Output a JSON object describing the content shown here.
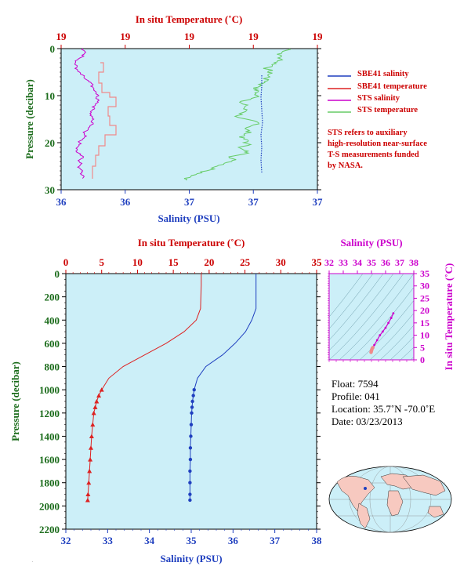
{
  "top_panel": {
    "temp_axis_title": "In situ Temperature (˚C)",
    "salinity_axis_title": "Salinity (PSU)",
    "pressure_axis_title": "Pressure (decibar)",
    "temp_ticks": [
      "19",
      "19",
      "19",
      "19",
      "19"
    ],
    "salinity_ticks": [
      "36",
      "36",
      "37",
      "37",
      "37"
    ],
    "pressure_ticks": [
      "0",
      "10",
      "20",
      "30"
    ],
    "legend": [
      {
        "label": "SBE41 salinity",
        "color": "#1f3fbf"
      },
      {
        "label": "SBE41 temperature",
        "color": "#dd2222"
      },
      {
        "label": "STS salinity",
        "color": "#cc00cc"
      },
      {
        "label": "STS temperature",
        "color": "#66cc66"
      }
    ],
    "note": [
      "STS refers to auxiliary",
      "high-resolution near-surface",
      "T-S measurements funded",
      "by NASA."
    ]
  },
  "main_panel": {
    "temp_axis_title": "In situ Temperature (˚C)",
    "salinity_axis_title": "Salinity (PSU)",
    "pressure_axis_title": "Pressure (decibar)",
    "temp_ticks": [
      "0",
      "5",
      "10",
      "15",
      "20",
      "25",
      "30",
      "35"
    ],
    "salinity_ticks": [
      "32",
      "33",
      "34",
      "35",
      "36",
      "37",
      "38"
    ],
    "pressure_ticks": [
      "0",
      "200",
      "400",
      "600",
      "800",
      "1000",
      "1200",
      "1400",
      "1600",
      "1800",
      "2000",
      "2200"
    ]
  },
  "ts_panel": {
    "salinity_axis_title": "Salinity (PSU)",
    "temp_axis_title": "In situ Temperature (˚C)",
    "salinity_ticks": [
      "32",
      "33",
      "34",
      "35",
      "36",
      "37",
      "38"
    ],
    "temp_ticks": [
      "0",
      "5",
      "10",
      "15",
      "20",
      "25",
      "30",
      "35"
    ]
  },
  "info": {
    "float": "Float: 7594",
    "profile": "Profile: 041",
    "location": "Location: 35.7˚N -70.0˚E",
    "date": "Date: 03/23/2013"
  },
  "chart_data": [
    {
      "type": "line",
      "panel": "main",
      "x_temperature_range": [
        0,
        35
      ],
      "x_salinity_range": [
        32,
        38
      ],
      "y_pressure_range": [
        0,
        2200
      ],
      "y_inverted": true,
      "series": [
        {
          "variable": "temperature",
          "color": "#dd2222",
          "pressure": [
            0,
            100,
            200,
            300,
            400,
            500,
            600,
            700,
            800,
            900,
            1000,
            1050,
            1100,
            1150,
            1200,
            1300,
            1400,
            1500,
            1600,
            1700,
            1800,
            1900,
            1950
          ],
          "values": [
            18.9,
            18.9,
            18.85,
            18.8,
            18.2,
            16.5,
            14.0,
            11.0,
            8.0,
            6.0,
            5.0,
            4.6,
            4.3,
            4.1,
            3.9,
            3.75,
            3.6,
            3.5,
            3.4,
            3.3,
            3.2,
            3.1,
            3.05
          ]
        },
        {
          "variable": "salinity",
          "color": "#1f3fbf",
          "pressure": [
            0,
            100,
            200,
            300,
            400,
            500,
            600,
            700,
            800,
            900,
            1000,
            1050,
            1100,
            1150,
            1200,
            1300,
            1400,
            1500,
            1600,
            1700,
            1800,
            1900,
            1950
          ],
          "values": [
            36.55,
            36.55,
            36.55,
            36.55,
            36.45,
            36.3,
            36.05,
            35.75,
            35.35,
            35.15,
            35.07,
            35.05,
            35.03,
            35.02,
            35.01,
            35.0,
            34.99,
            34.98,
            34.98,
            34.97,
            34.97,
            34.97,
            34.97
          ]
        }
      ]
    },
    {
      "type": "line",
      "panel": "top",
      "y_pressure_range": [
        0,
        30
      ],
      "y_inverted": true
    },
    {
      "type": "scatter",
      "panel": "ts",
      "x_salinity_range": [
        32,
        38
      ],
      "y_temperature_range": [
        0,
        35
      ],
      "x": [
        34.97,
        34.98,
        35.0,
        35.02,
        35.05,
        35.1,
        35.2,
        35.4,
        35.6,
        35.8,
        36.0,
        36.2,
        36.4,
        36.55
      ],
      "y": [
        3.05,
        3.3,
        3.75,
        4.1,
        4.6,
        5.0,
        6.0,
        8.0,
        10.0,
        11.5,
        13.0,
        15.0,
        17.0,
        18.9
      ]
    }
  ]
}
